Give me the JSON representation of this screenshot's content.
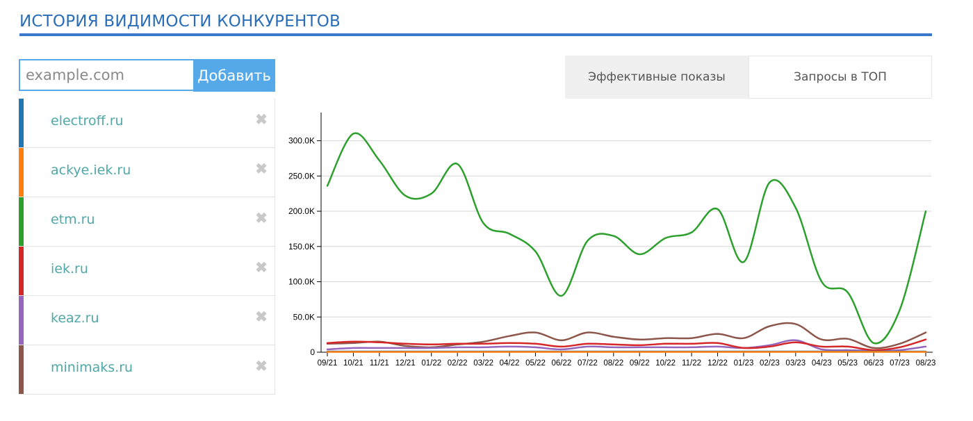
{
  "page": {
    "title": "ИСТОРИЯ ВИДИМОСТИ КОНКУРЕНТОВ"
  },
  "add_form": {
    "placeholder": "example.com",
    "button_label": "Добавить"
  },
  "tabs": [
    {
      "label": "Эффективные показы",
      "active": true
    },
    {
      "label": "Запросы в ТОП",
      "active": false
    }
  ],
  "domains": [
    {
      "name": "electroff.ru",
      "color": "#1f77b4",
      "remove_icon": "close-x-icon"
    },
    {
      "name": "ackye.iek.ru",
      "color": "#ff7f0e",
      "remove_icon": "close-x-icon"
    },
    {
      "name": "etm.ru",
      "color": "#2ca02c",
      "remove_icon": "close-x-icon"
    },
    {
      "name": "iek.ru",
      "color": "#d62728",
      "remove_icon": "close-x-icon"
    },
    {
      "name": "keaz.ru",
      "color": "#9467bd",
      "remove_icon": "close-x-icon"
    },
    {
      "name": "minimaks.ru",
      "color": "#8c564b",
      "remove_icon": "close-x-icon"
    }
  ],
  "chart_data": {
    "type": "line",
    "categories": [
      "09/21",
      "10/21",
      "11/21",
      "12/21",
      "01/22",
      "02/22",
      "03/22",
      "04/22",
      "05/22",
      "06/22",
      "07/22",
      "08/22",
      "09/22",
      "10/22",
      "11/22",
      "12/22",
      "01/23",
      "02/23",
      "03/23",
      "04/23",
      "05/23",
      "06/23",
      "07/23",
      "08/23"
    ],
    "y_ticks": [
      0,
      50000,
      100000,
      150000,
      200000,
      250000,
      300000
    ],
    "y_tick_labels": [
      "0",
      "50.0K",
      "100.0K",
      "150.0K",
      "200.0K",
      "250.0K",
      "300.0K"
    ],
    "ylim": [
      0,
      340000
    ],
    "grid": true,
    "series": [
      {
        "name": "electroff.ru",
        "color": "#1f77b4",
        "values": [
          1000,
          1000,
          1000,
          1000,
          1000,
          1000,
          1000,
          1000,
          1000,
          1000,
          1000,
          1000,
          1000,
          1000,
          1000,
          1000,
          1000,
          1000,
          1000,
          1000,
          1000,
          1000,
          1000,
          1000
        ]
      },
      {
        "name": "ackye.iek.ru",
        "color": "#ff7f0e",
        "values": [
          500,
          500,
          500,
          500,
          500,
          500,
          500,
          500,
          500,
          500,
          500,
          500,
          500,
          500,
          500,
          500,
          500,
          500,
          500,
          500,
          500,
          500,
          500,
          500
        ]
      },
      {
        "name": "etm.ru",
        "color": "#2ca02c",
        "values": [
          236000,
          310000,
          272000,
          222000,
          225000,
          267000,
          183000,
          168000,
          143000,
          80000,
          158000,
          165000,
          139000,
          162000,
          170000,
          203000,
          128000,
          241000,
          205000,
          100000,
          85000,
          13000,
          60000,
          200000
        ]
      },
      {
        "name": "iek.ru",
        "color": "#d62728",
        "values": [
          13000,
          15000,
          14000,
          12000,
          11000,
          12000,
          12000,
          13000,
          12000,
          8000,
          12000,
          11000,
          10000,
          12000,
          12000,
          13000,
          6000,
          8000,
          14000,
          8000,
          8000,
          3000,
          7000,
          18000
        ]
      },
      {
        "name": "keaz.ru",
        "color": "#9467bd",
        "values": [
          4000,
          6000,
          6000,
          6000,
          6000,
          7000,
          7000,
          8000,
          7000,
          4000,
          8000,
          7000,
          7000,
          7000,
          7000,
          8000,
          6000,
          10000,
          17000,
          4000,
          3000,
          2000,
          3000,
          8000
        ]
      },
      {
        "name": "minimaks.ru",
        "color": "#8c564b",
        "values": [
          12000,
          13000,
          15000,
          9000,
          7000,
          11000,
          15000,
          23000,
          28000,
          17000,
          28000,
          22000,
          18000,
          20000,
          20000,
          26000,
          20000,
          37000,
          40000,
          18000,
          19000,
          6000,
          12000,
          28000
        ]
      }
    ]
  }
}
